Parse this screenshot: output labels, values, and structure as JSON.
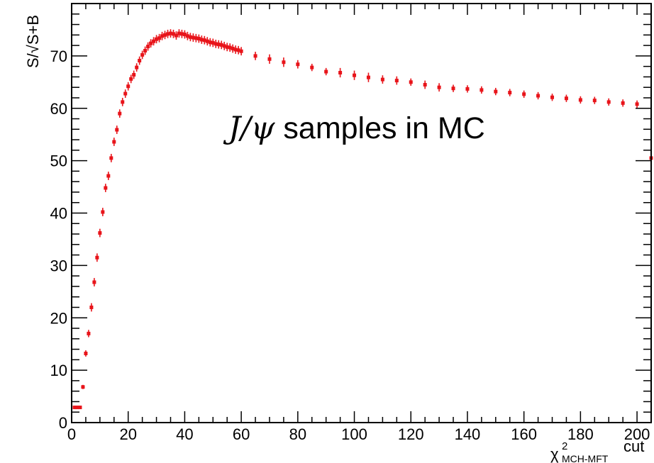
{
  "chart_data": {
    "type": "scatter",
    "annotation": {
      "prefix_italic": "J/ψ",
      "suffix": " samples in MC"
    },
    "ylabel": "S/√S+B",
    "xlabel": {
      "base": "χ",
      "superscript": "2",
      "subscript": "MCH-MFT",
      "suffix": "cut"
    },
    "xlim": [
      0,
      205
    ],
    "ylim": [
      0,
      80
    ],
    "x_ticks": [
      0,
      20,
      40,
      60,
      80,
      100,
      120,
      140,
      160,
      180,
      200
    ],
    "y_ticks": [
      0,
      10,
      20,
      30,
      40,
      50,
      60,
      70
    ],
    "grid": false,
    "marker_color": "#e8141a",
    "series": [
      {
        "x": [
          1,
          2,
          3,
          4,
          5,
          6,
          7,
          8,
          9,
          10,
          11,
          12,
          13,
          14,
          15,
          16,
          17,
          18,
          19,
          20,
          21,
          22,
          23,
          24,
          25,
          26,
          27,
          28,
          29,
          30,
          31,
          32,
          33,
          34,
          35,
          36,
          37,
          38,
          39,
          40,
          41,
          42,
          43,
          44,
          45,
          46,
          47,
          48,
          49,
          50,
          51,
          52,
          53,
          54,
          55,
          56,
          57,
          58,
          59,
          60,
          65,
          70,
          75,
          80,
          85,
          90,
          95,
          100,
          105,
          110,
          115,
          120,
          125,
          130,
          135,
          140,
          145,
          150,
          155,
          160,
          165,
          170,
          175,
          180,
          185,
          190,
          195,
          200,
          205
        ],
        "y": [
          2.9,
          2.9,
          2.9,
          6.8,
          13.2,
          17.0,
          22.0,
          26.8,
          31.5,
          36.2,
          40.2,
          44.8,
          47.1,
          50.5,
          53.6,
          55.9,
          59.0,
          61.2,
          62.8,
          64.2,
          65.6,
          66.4,
          67.8,
          69.1,
          70.2,
          71.0,
          71.8,
          72.4,
          72.8,
          73.2,
          73.4,
          73.8,
          74.0,
          74.2,
          74.3,
          74.2,
          73.9,
          74.3,
          74.2,
          74.1,
          73.8,
          73.6,
          73.5,
          73.4,
          73.3,
          73.1,
          73.0,
          72.8,
          72.6,
          72.5,
          72.3,
          72.2,
          72.1,
          71.9,
          71.7,
          71.6,
          71.4,
          71.2,
          71.1,
          70.9,
          70.0,
          69.4,
          68.8,
          68.4,
          67.8,
          67.0,
          66.8,
          66.3,
          65.9,
          65.5,
          65.3,
          65.0,
          64.5,
          64.0,
          63.8,
          63.7,
          63.5,
          63.2,
          63.0,
          62.7,
          62.4,
          62.1,
          61.9,
          61.6,
          61.5,
          61.2,
          61.0,
          60.8,
          50.5
        ],
        "yerr": [
          0.3,
          0.3,
          0.3,
          0.4,
          0.6,
          0.7,
          0.8,
          0.8,
          0.8,
          0.8,
          0.8,
          0.8,
          0.8,
          0.8,
          0.8,
          0.8,
          0.8,
          0.8,
          0.8,
          0.8,
          0.8,
          0.8,
          0.8,
          0.8,
          0.8,
          0.8,
          0.8,
          0.8,
          0.8,
          0.8,
          0.8,
          0.8,
          0.8,
          0.8,
          0.8,
          0.8,
          0.8,
          0.8,
          0.8,
          0.8,
          0.8,
          0.8,
          0.8,
          0.8,
          0.8,
          0.8,
          0.8,
          0.8,
          0.8,
          0.8,
          0.8,
          0.8,
          0.8,
          0.8,
          0.8,
          0.8,
          0.8,
          0.8,
          0.8,
          0.8,
          0.8,
          0.9,
          0.9,
          0.8,
          0.7,
          0.7,
          0.9,
          0.9,
          0.9,
          0.8,
          0.8,
          0.7,
          0.8,
          0.8,
          0.7,
          0.7,
          0.7,
          0.7,
          0.7,
          0.7,
          0.7,
          0.7,
          0.7,
          0.7,
          0.7,
          0.7,
          0.7,
          0.7,
          0.7
        ]
      }
    ]
  }
}
